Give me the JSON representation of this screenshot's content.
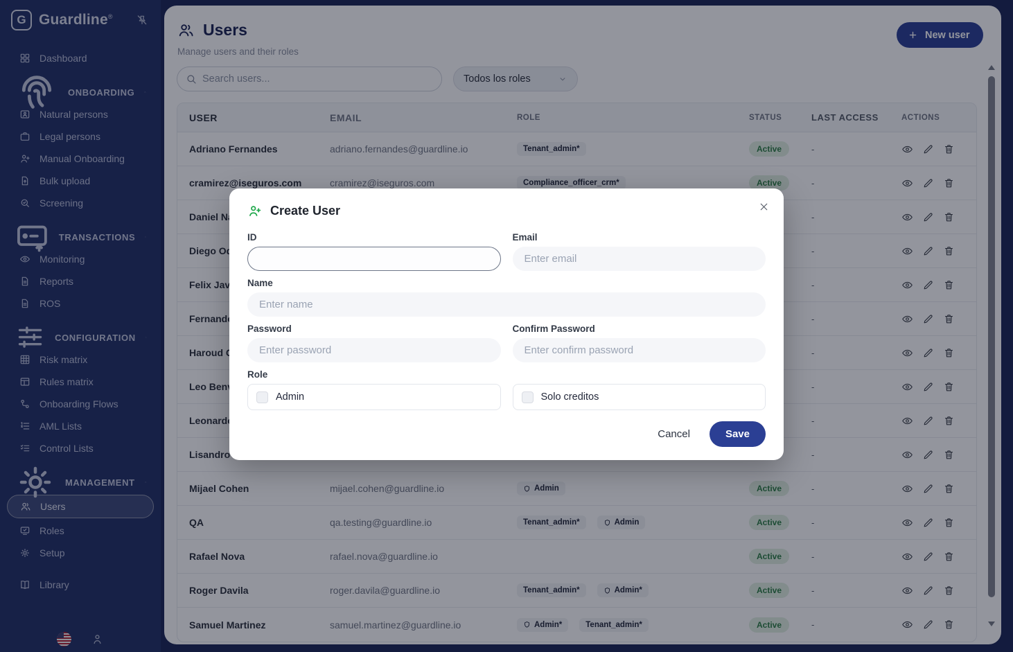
{
  "colors": {
    "accent": "#2b3f94",
    "navy": "#1c2554",
    "status_green": "#2e7d45",
    "modal_icon_green": "#21a84c"
  },
  "brand": {
    "logo_letter": "G",
    "name": "Guardline",
    "registered": "®",
    "pin_icon": "pin-off-icon"
  },
  "sidebar": {
    "items": [
      {
        "type": "item",
        "icon": "dashboard",
        "label": "Dashboard"
      },
      {
        "type": "section",
        "icon": "fingerprint",
        "label": "ONBOARDING"
      },
      {
        "type": "sub",
        "icon": "id-card",
        "label": "Natural persons"
      },
      {
        "type": "sub",
        "icon": "briefcase",
        "label": "Legal persons"
      },
      {
        "type": "sub",
        "icon": "person-plus",
        "label": "Manual Onboarding"
      },
      {
        "type": "sub",
        "icon": "file-upload",
        "label": "Bulk upload"
      },
      {
        "type": "sub",
        "icon": "search-check",
        "label": "Screening"
      },
      {
        "type": "section",
        "icon": "card-transfer",
        "label": "TRANSACTIONS"
      },
      {
        "type": "sub",
        "icon": "eye",
        "label": "Monitoring"
      },
      {
        "type": "sub",
        "icon": "document",
        "label": "Reports"
      },
      {
        "type": "sub",
        "icon": "document",
        "label": "ROS"
      },
      {
        "type": "section",
        "icon": "sliders",
        "label": "CONFIGURATION"
      },
      {
        "type": "sub",
        "icon": "grid-matrix",
        "label": "Risk matrix"
      },
      {
        "type": "sub",
        "icon": "table",
        "label": "Rules matrix"
      },
      {
        "type": "sub",
        "icon": "flow",
        "label": "Onboarding Flows"
      },
      {
        "type": "sub",
        "icon": "ordered-list",
        "label": "AML Lists"
      },
      {
        "type": "sub",
        "icon": "check-list",
        "label": "Control Lists"
      },
      {
        "type": "section",
        "icon": "gear",
        "label": "MANAGEMENT"
      },
      {
        "type": "sub",
        "icon": "users",
        "label": "Users",
        "active": true
      },
      {
        "type": "sub",
        "icon": "roles",
        "label": "Roles"
      },
      {
        "type": "sub",
        "icon": "gear",
        "label": "Setup"
      },
      {
        "type": "item",
        "icon": "book",
        "label": "Library",
        "standalone": true
      }
    ]
  },
  "header": {
    "title": "Users",
    "subtitle": "Manage users and their roles",
    "new_user_label": "New user"
  },
  "filters": {
    "search_placeholder": "Search users...",
    "role_filter_value": "Todos los roles"
  },
  "table": {
    "columns": [
      "USER",
      "EMAIL",
      "ROLE",
      "STATUS",
      "LAST ACCESS",
      "ACTIONS"
    ],
    "rows": [
      {
        "user": "Adriano Fernandes",
        "email": "adriano.fernandes@guardline.io",
        "roles": [
          {
            "label": "Tenant_admin*",
            "shield": false
          }
        ],
        "status": "Active",
        "last_access": "-"
      },
      {
        "user": "cramirez@iseguros.com",
        "email": "cramirez@iseguros.com",
        "roles": [
          {
            "label": "Compliance_officer_crm*",
            "shield": false
          }
        ],
        "status": "Active",
        "last_access": "-"
      },
      {
        "user": "Daniel Nav",
        "email": "",
        "roles": [],
        "status": null,
        "last_access": "-"
      },
      {
        "user": "Diego Ode",
        "email": "",
        "roles": [],
        "status": null,
        "last_access": "-"
      },
      {
        "user": "Felix Javie",
        "email": "",
        "roles": [],
        "status": null,
        "last_access": "-"
      },
      {
        "user": "Fernando",
        "email": "",
        "roles": [],
        "status": null,
        "last_access": "-"
      },
      {
        "user": "Haroud Cu",
        "email": "",
        "roles": [],
        "status": null,
        "last_access": "-"
      },
      {
        "user": "Leo Benve",
        "email": "",
        "roles": [],
        "status": null,
        "last_access": "-"
      },
      {
        "user": "Leonardo",
        "email": "",
        "roles": [],
        "status": null,
        "last_access": "-"
      },
      {
        "user": "Lisandro F",
        "email": "",
        "roles": [],
        "status": null,
        "last_access": "-"
      },
      {
        "user": "Mijael Cohen",
        "email": "mijael.cohen@guardline.io",
        "roles": [
          {
            "label": "Admin",
            "shield": true
          }
        ],
        "status": "Active",
        "last_access": "-"
      },
      {
        "user": "QA",
        "email": "qa.testing@guardline.io",
        "roles": [
          {
            "label": "Tenant_admin*",
            "shield": false
          },
          {
            "label": "Admin",
            "shield": true
          }
        ],
        "status": "Active",
        "last_access": "-"
      },
      {
        "user": "Rafael Nova",
        "email": "rafael.nova@guardline.io",
        "roles": [],
        "status": "Active",
        "last_access": "-"
      },
      {
        "user": "Roger Davila",
        "email": "roger.davila@guardline.io",
        "roles": [
          {
            "label": "Tenant_admin*",
            "shield": false
          },
          {
            "label": "Admin*",
            "shield": true
          }
        ],
        "status": "Active",
        "last_access": "-"
      },
      {
        "user": "Samuel Martinez",
        "email": "samuel.martinez@guardline.io",
        "roles": [
          {
            "label": "Admin*",
            "shield": true
          },
          {
            "label": "Tenant_admin*",
            "shield": false
          }
        ],
        "status": "Active",
        "last_access": "-"
      }
    ]
  },
  "modal": {
    "title": "Create User",
    "fields": {
      "id_label": "ID",
      "id_value": "",
      "email_label": "Email",
      "email_placeholder": "Enter email",
      "name_label": "Name",
      "name_placeholder": "Enter name",
      "password_label": "Password",
      "password_placeholder": "Enter password",
      "confirm_label": "Confirm Password",
      "confirm_placeholder": "Enter confirm password",
      "role_label": "Role",
      "role_options": [
        {
          "label": "Admin",
          "checked": false
        },
        {
          "label": "Solo creditos",
          "checked": false
        }
      ]
    },
    "cancel_label": "Cancel",
    "save_label": "Save"
  }
}
